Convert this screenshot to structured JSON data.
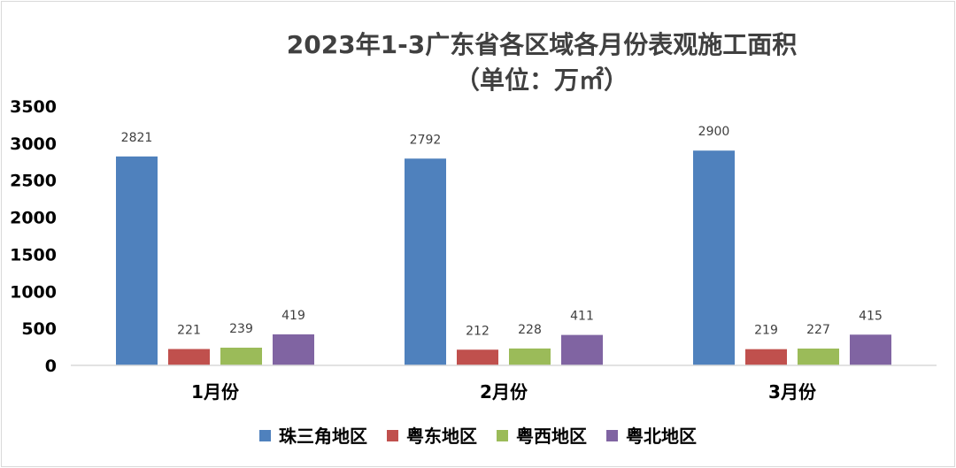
{
  "chart_data": {
    "type": "bar",
    "title": "2023年1-3广东省各区域各月份表观施工面积",
    "subtitle": "（单位：万㎡）",
    "categories": [
      "1月份",
      "2月份",
      "3月份"
    ],
    "series": [
      {
        "name": "珠三角地区",
        "color": "#4f81bd",
        "values": [
          2821,
          2792,
          2900
        ]
      },
      {
        "name": "粤东地区",
        "color": "#c0504d",
        "values": [
          221,
          212,
          219
        ]
      },
      {
        "name": "粤西地区",
        "color": "#9bbb59",
        "values": [
          239,
          228,
          227
        ]
      },
      {
        "name": "粤北地区",
        "color": "#8064a2",
        "values": [
          419,
          411,
          415
        ]
      }
    ],
    "yticks": [
      "0",
      "500",
      "1000",
      "1500",
      "2000",
      "2500",
      "3000",
      "3500"
    ],
    "ylim": [
      0,
      3500
    ],
    "grid": false,
    "legend": "bottom"
  }
}
